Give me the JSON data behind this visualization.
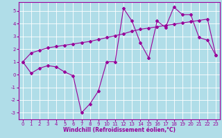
{
  "xlabel": "Windchill (Refroidissement éolien,°C)",
  "xlim": [
    -0.5,
    23.5
  ],
  "ylim": [
    -3.5,
    5.7
  ],
  "yticks": [
    -3,
    -2,
    -1,
    0,
    1,
    2,
    3,
    4,
    5
  ],
  "xticks": [
    0,
    1,
    2,
    3,
    4,
    5,
    6,
    7,
    8,
    9,
    10,
    11,
    12,
    13,
    14,
    15,
    16,
    17,
    18,
    19,
    20,
    21,
    22,
    23
  ],
  "bg_color": "#b0dde8",
  "line_color": "#990099",
  "grid_color": "#ffffff",
  "series1_x": [
    0,
    1,
    2,
    3,
    4,
    5,
    6,
    7,
    8,
    9,
    10,
    11,
    12,
    13,
    14,
    15,
    16,
    17,
    18,
    19,
    20,
    21,
    22,
    23
  ],
  "series1_y": [
    1.0,
    0.1,
    0.5,
    0.7,
    0.6,
    0.2,
    -0.1,
    -3.0,
    -2.3,
    -1.3,
    1.0,
    1.0,
    5.2,
    4.2,
    2.5,
    1.3,
    4.2,
    3.7,
    5.3,
    4.7,
    4.7,
    2.9,
    2.7,
    1.5
  ],
  "series2_x": [
    0,
    1,
    2,
    3,
    4,
    5,
    6,
    7,
    8,
    9,
    10,
    11,
    12,
    13,
    14,
    15,
    16,
    17,
    18,
    19,
    20,
    21,
    22,
    23
  ],
  "series2_y": [
    1.0,
    1.7,
    1.9,
    2.1,
    2.2,
    2.3,
    2.4,
    2.5,
    2.6,
    2.75,
    2.9,
    3.05,
    3.2,
    3.4,
    3.55,
    3.65,
    3.75,
    3.85,
    3.95,
    4.05,
    4.15,
    4.25,
    4.35,
    1.5
  ],
  "marker": "D",
  "markersize": 2,
  "linewidth": 0.8,
  "tick_fontsize": 5,
  "xlabel_fontsize": 5.5
}
